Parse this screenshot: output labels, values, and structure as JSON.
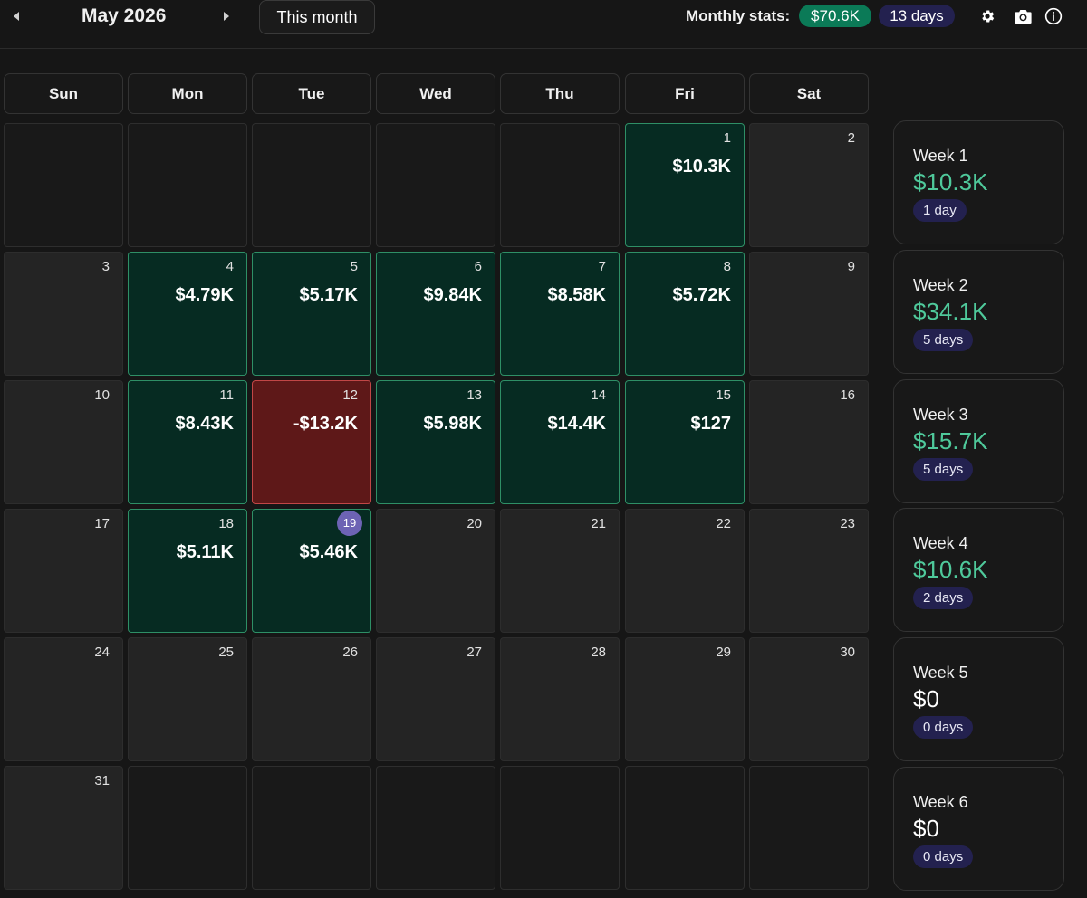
{
  "header": {
    "prev_icon": "triangle-left-icon",
    "month_title": "May 2026",
    "next_icon": "triangle-right-icon",
    "this_month_label": "This month",
    "stats_label": "Monthly stats:",
    "monthly_pnl": "$70.6K",
    "monthly_days": "13 days",
    "icons": [
      "gear-icon",
      "camera-icon",
      "info-icon"
    ]
  },
  "weekdays": [
    "Sun",
    "Mon",
    "Tue",
    "Wed",
    "Thu",
    "Fri",
    "Sat"
  ],
  "calendar": {
    "rows": [
      [
        {
          "day": "",
          "pnl": "",
          "status": "empty"
        },
        {
          "day": "",
          "pnl": "",
          "status": "empty"
        },
        {
          "day": "",
          "pnl": "",
          "status": "empty"
        },
        {
          "day": "",
          "pnl": "",
          "status": "empty"
        },
        {
          "day": "",
          "pnl": "",
          "status": "empty"
        },
        {
          "day": "1",
          "pnl": "$10.3K",
          "status": "positive"
        },
        {
          "day": "2",
          "pnl": "",
          "status": "none"
        }
      ],
      [
        {
          "day": "3",
          "pnl": "",
          "status": "none"
        },
        {
          "day": "4",
          "pnl": "$4.79K",
          "status": "positive"
        },
        {
          "day": "5",
          "pnl": "$5.17K",
          "status": "positive"
        },
        {
          "day": "6",
          "pnl": "$9.84K",
          "status": "positive"
        },
        {
          "day": "7",
          "pnl": "$8.58K",
          "status": "positive"
        },
        {
          "day": "8",
          "pnl": "$5.72K",
          "status": "positive"
        },
        {
          "day": "9",
          "pnl": "",
          "status": "none"
        }
      ],
      [
        {
          "day": "10",
          "pnl": "",
          "status": "none"
        },
        {
          "day": "11",
          "pnl": "$8.43K",
          "status": "positive"
        },
        {
          "day": "12",
          "pnl": "-$13.2K",
          "status": "negative"
        },
        {
          "day": "13",
          "pnl": "$5.98K",
          "status": "positive"
        },
        {
          "day": "14",
          "pnl": "$14.4K",
          "status": "positive"
        },
        {
          "day": "15",
          "pnl": "$127",
          "status": "positive"
        },
        {
          "day": "16",
          "pnl": "",
          "status": "none"
        }
      ],
      [
        {
          "day": "17",
          "pnl": "",
          "status": "none"
        },
        {
          "day": "18",
          "pnl": "$5.11K",
          "status": "positive"
        },
        {
          "day": "19",
          "pnl": "$5.46K",
          "status": "positive",
          "today": true
        },
        {
          "day": "20",
          "pnl": "",
          "status": "none"
        },
        {
          "day": "21",
          "pnl": "",
          "status": "none"
        },
        {
          "day": "22",
          "pnl": "",
          "status": "none"
        },
        {
          "day": "23",
          "pnl": "",
          "status": "none"
        }
      ],
      [
        {
          "day": "24",
          "pnl": "",
          "status": "none"
        },
        {
          "day": "25",
          "pnl": "",
          "status": "none"
        },
        {
          "day": "26",
          "pnl": "",
          "status": "none"
        },
        {
          "day": "27",
          "pnl": "",
          "status": "none"
        },
        {
          "day": "28",
          "pnl": "",
          "status": "none"
        },
        {
          "day": "29",
          "pnl": "",
          "status": "none"
        },
        {
          "day": "30",
          "pnl": "",
          "status": "none"
        }
      ],
      [
        {
          "day": "31",
          "pnl": "",
          "status": "none"
        },
        {
          "day": "",
          "pnl": "",
          "status": "empty"
        },
        {
          "day": "",
          "pnl": "",
          "status": "empty"
        },
        {
          "day": "",
          "pnl": "",
          "status": "empty"
        },
        {
          "day": "",
          "pnl": "",
          "status": "empty"
        },
        {
          "day": "",
          "pnl": "",
          "status": "empty"
        },
        {
          "day": "",
          "pnl": "",
          "status": "empty"
        }
      ]
    ]
  },
  "weeks": [
    {
      "label": "Week 1",
      "amount": "$10.3K",
      "days": "1 day"
    },
    {
      "label": "Week 2",
      "amount": "$34.1K",
      "days": "5 days"
    },
    {
      "label": "Week 3",
      "amount": "$15.7K",
      "days": "5 days"
    },
    {
      "label": "Week 4",
      "amount": "$10.6K",
      "days": "2 days"
    },
    {
      "label": "Week 5",
      "amount": "$0",
      "days": "0 days"
    },
    {
      "label": "Week 6",
      "amount": "$0",
      "days": "0 days"
    }
  ],
  "colors": {
    "positive_bg": "#062b22",
    "negative_bg": "#5e1818",
    "positive_text": "#4fc99b",
    "stats_green": "#0b7a57",
    "stats_purple": "#23214f",
    "today_badge": "#6d63b4"
  }
}
